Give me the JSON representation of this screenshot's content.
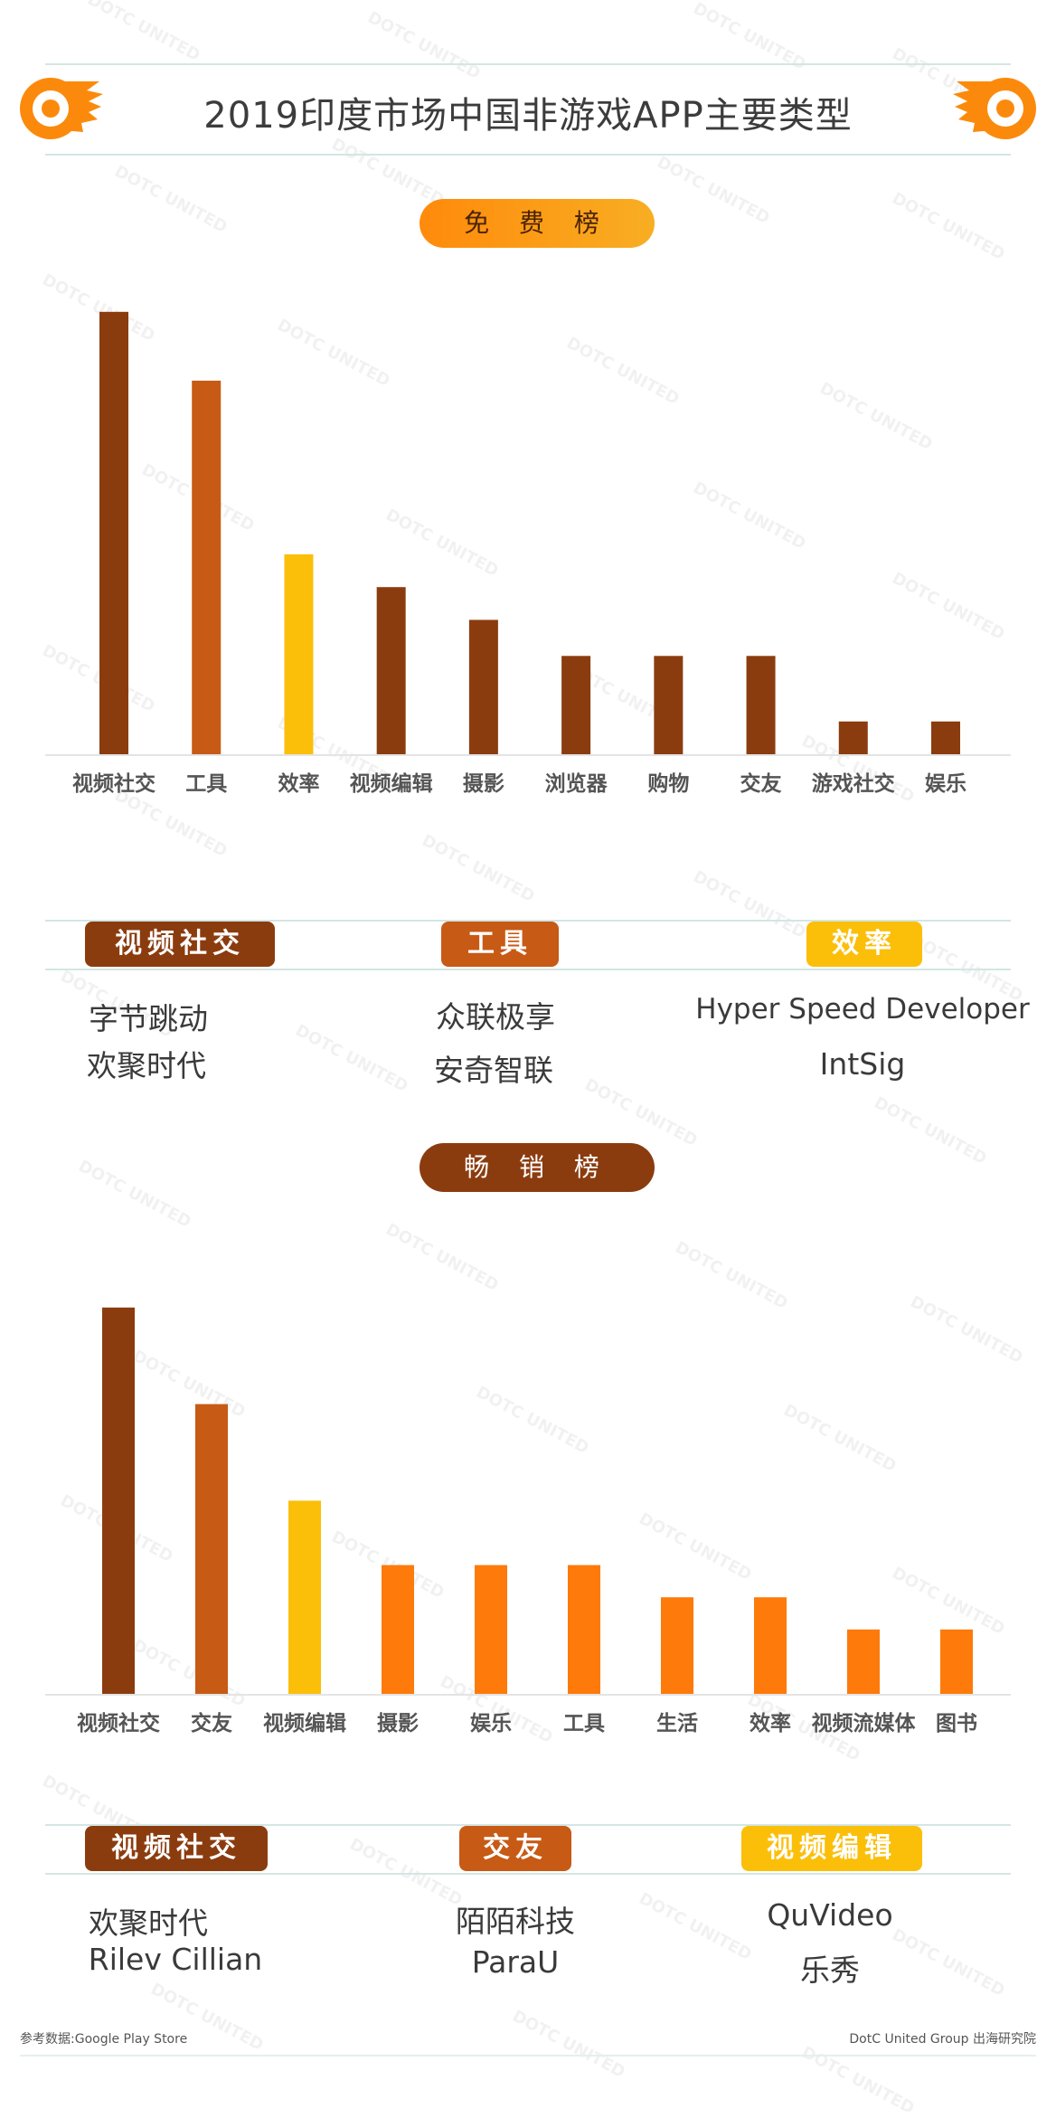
{
  "page": {
    "title": "2019印度市场中国非游戏APP主要类型",
    "watermark": "DOTC UNITED",
    "source_note": "参考数据:Google Play Store",
    "credit": "DotC United Group 出海研究院"
  },
  "colors": {
    "brown": "#8b3c0f",
    "rust": "#c75a15",
    "yellow": "#fbbf0a",
    "orange": "#fd7a0b",
    "logo_orange": "#fb8a0c"
  },
  "free": {
    "label": "免 费 榜",
    "top_categories": [
      {
        "tag": "视频社交",
        "color": "#8b3c0f",
        "companies": [
          "字节跳动",
          "欢聚时代"
        ]
      },
      {
        "tag": "工具",
        "color": "#c75a15",
        "companies": [
          "众联极享",
          "安奇智联"
        ]
      },
      {
        "tag": "效率",
        "color": "#fbbf0a",
        "companies": [
          "Hyper Speed Developer",
          "IntSig"
        ]
      }
    ]
  },
  "paid": {
    "label": "畅 销 榜",
    "top_categories": [
      {
        "tag": "视频社交",
        "color": "#8b3c0f",
        "companies": [
          "欢聚时代",
          "Rilev Cillian"
        ]
      },
      {
        "tag": "交友",
        "color": "#c75a15",
        "companies": [
          "陌陌科技",
          "ParaU"
        ]
      },
      {
        "tag": "视频编辑",
        "color": "#fbbf0a",
        "companies": [
          "QuVideo",
          "乐秀"
        ]
      }
    ]
  },
  "chart_data": [
    {
      "type": "bar",
      "title": "免 费 榜",
      "categories": [
        "视频社交",
        "工具",
        "效率",
        "视频编辑",
        "摄影",
        "浏览器",
        "购物",
        "交友",
        "游戏社交",
        "娱乐"
      ],
      "values": [
        13.5,
        11.4,
        6.1,
        5.1,
        4.1,
        3.0,
        3.0,
        3.0,
        1.0,
        1.0
      ],
      "bar_colors": [
        "#8b3c0f",
        "#c75a15",
        "#fbbf0a",
        "#8b3c0f",
        "#8b3c0f",
        "#8b3c0f",
        "#8b3c0f",
        "#8b3c0f",
        "#8b3c0f",
        "#8b3c0f"
      ],
      "ylim": [
        0,
        14
      ],
      "grid": false,
      "axis_labels_shown": false
    },
    {
      "type": "bar",
      "title": "畅 销 榜",
      "categories": [
        "视频社交",
        "交友",
        "视频编辑",
        "摄影",
        "娱乐",
        "工具",
        "生活",
        "效率",
        "视频流媒体",
        "图书"
      ],
      "values": [
        12,
        9,
        6,
        4,
        4,
        4,
        3,
        3,
        2,
        2
      ],
      "bar_colors": [
        "#8b3c0f",
        "#c75a15",
        "#fbbf0a",
        "#fd7a0b",
        "#fd7a0b",
        "#fd7a0b",
        "#fd7a0b",
        "#fd7a0b",
        "#fd7a0b",
        "#fd7a0b"
      ],
      "ylim": [
        0,
        12.5
      ],
      "grid": false,
      "axis_labels_shown": false
    }
  ]
}
